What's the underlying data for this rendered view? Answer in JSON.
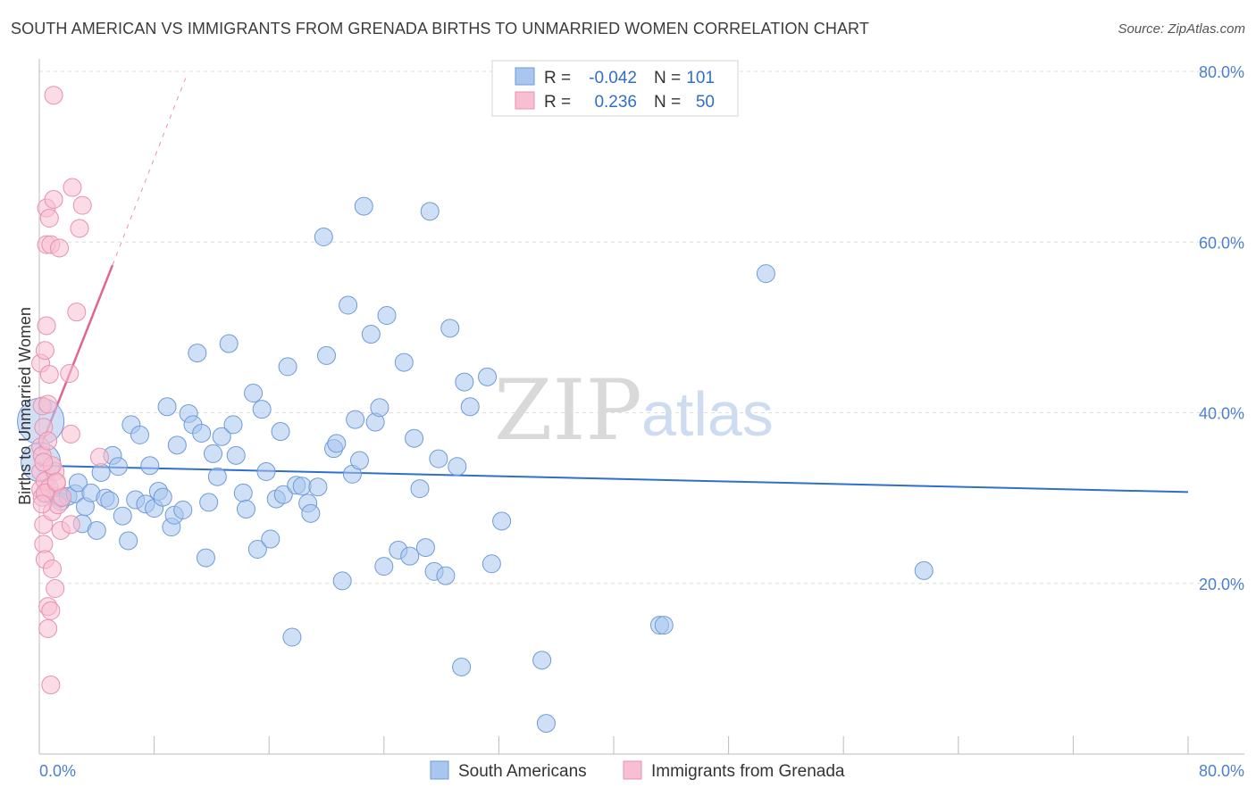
{
  "title": "SOUTH AMERICAN VS IMMIGRANTS FROM GRENADA BIRTHS TO UNMARRIED WOMEN CORRELATION CHART",
  "source": "Source: ZipAtlas.com",
  "watermark": {
    "zip": "ZIP",
    "atlas": "atlas"
  },
  "chart_data": {
    "type": "scatter",
    "ylabel": "Births to Unmarried Women",
    "xlim": [
      0,
      80
    ],
    "ylim": [
      0,
      80
    ],
    "x_tick_labels": {
      "min": "0.0%",
      "max": "80.0%"
    },
    "y_tick_labels": [
      "20.0%",
      "40.0%",
      "60.0%",
      "80.0%"
    ],
    "y_ticks": [
      20,
      40,
      60,
      80
    ],
    "grid": true,
    "legend_stats": [
      {
        "r_label": "R =",
        "r_value": "-0.042",
        "n_label": "N =",
        "n_value": "101"
      },
      {
        "r_label": "R =",
        "r_value": "0.236",
        "n_label": "N =",
        "n_value": "50"
      }
    ],
    "series": [
      {
        "name": "South Americans",
        "color": "#a8c6ee",
        "stroke": "#6e9ad8",
        "trend": {
          "x": [
            0,
            80
          ],
          "y": [
            33.8,
            30.7
          ],
          "color": "#2f6fcc"
        },
        "points": [
          [
            0.1,
            39.0
          ],
          [
            0.1,
            34.2
          ],
          [
            0.4,
            30.5
          ],
          [
            1.0,
            30.2
          ],
          [
            1.5,
            29.6
          ],
          [
            1.5,
            30.0
          ],
          [
            2.0,
            30.2
          ],
          [
            2.5,
            30.5
          ],
          [
            2.7,
            31.8
          ],
          [
            3.0,
            27.0
          ],
          [
            3.2,
            29.0
          ],
          [
            3.6,
            30.6
          ],
          [
            4.0,
            26.2
          ],
          [
            4.3,
            33.0
          ],
          [
            4.6,
            30.0
          ],
          [
            4.9,
            29.7
          ],
          [
            5.1,
            35.0
          ],
          [
            5.5,
            33.7
          ],
          [
            5.8,
            27.9
          ],
          [
            6.2,
            25.0
          ],
          [
            6.4,
            38.6
          ],
          [
            6.7,
            29.8
          ],
          [
            7.0,
            37.4
          ],
          [
            7.4,
            29.3
          ],
          [
            7.7,
            33.8
          ],
          [
            8.0,
            28.8
          ],
          [
            8.3,
            30.8
          ],
          [
            8.6,
            30.1
          ],
          [
            8.9,
            40.7
          ],
          [
            9.2,
            26.6
          ],
          [
            9.4,
            28.0
          ],
          [
            9.6,
            36.2
          ],
          [
            10.0,
            28.6
          ],
          [
            10.4,
            39.9
          ],
          [
            10.7,
            38.6
          ],
          [
            11.0,
            47.0
          ],
          [
            11.3,
            37.6
          ],
          [
            11.6,
            23.0
          ],
          [
            11.8,
            29.5
          ],
          [
            12.1,
            35.2
          ],
          [
            12.4,
            32.5
          ],
          [
            12.7,
            37.2
          ],
          [
            13.2,
            48.1
          ],
          [
            13.5,
            38.6
          ],
          [
            13.7,
            35.0
          ],
          [
            14.2,
            30.6
          ],
          [
            14.4,
            28.7
          ],
          [
            14.9,
            42.3
          ],
          [
            15.2,
            24.0
          ],
          [
            15.5,
            40.4
          ],
          [
            15.8,
            33.1
          ],
          [
            16.1,
            25.2
          ],
          [
            16.5,
            29.9
          ],
          [
            16.8,
            37.8
          ],
          [
            17.0,
            30.4
          ],
          [
            17.3,
            45.4
          ],
          [
            17.6,
            13.7
          ],
          [
            17.9,
            31.5
          ],
          [
            18.3,
            31.4
          ],
          [
            18.7,
            29.4
          ],
          [
            18.9,
            28.2
          ],
          [
            19.4,
            31.3
          ],
          [
            19.8,
            60.6
          ],
          [
            20.0,
            46.7
          ],
          [
            20.5,
            35.8
          ],
          [
            20.7,
            36.4
          ],
          [
            21.1,
            20.3
          ],
          [
            21.5,
            52.6
          ],
          [
            21.8,
            32.8
          ],
          [
            22.0,
            39.2
          ],
          [
            22.3,
            34.4
          ],
          [
            22.6,
            64.2
          ],
          [
            23.1,
            49.2
          ],
          [
            23.4,
            38.9
          ],
          [
            23.7,
            40.6
          ],
          [
            24.0,
            22.0
          ],
          [
            24.2,
            51.4
          ],
          [
            25.0,
            23.9
          ],
          [
            25.4,
            45.9
          ],
          [
            25.8,
            23.2
          ],
          [
            26.1,
            37.0
          ],
          [
            26.5,
            31.1
          ],
          [
            26.9,
            24.2
          ],
          [
            27.2,
            63.6
          ],
          [
            27.5,
            21.4
          ],
          [
            27.8,
            34.6
          ],
          [
            28.3,
            20.9
          ],
          [
            28.6,
            49.9
          ],
          [
            29.1,
            33.7
          ],
          [
            29.4,
            10.2
          ],
          [
            29.6,
            43.6
          ],
          [
            30.0,
            40.7
          ],
          [
            31.2,
            44.2
          ],
          [
            31.5,
            22.3
          ],
          [
            32.2,
            27.3
          ],
          [
            35.0,
            11.0
          ],
          [
            35.3,
            3.6
          ],
          [
            43.2,
            15.1
          ],
          [
            43.5,
            15.1
          ],
          [
            50.6,
            56.3
          ],
          [
            61.6,
            21.5
          ]
        ]
      },
      {
        "name": "Immigrants from Grenada",
        "color": "#f7bfd1",
        "stroke": "#e890ad",
        "trend": {
          "x": [
            0,
            5.1
          ],
          "y": [
            35.6,
            57.3
          ],
          "color": "#e0668f",
          "dash_to": [
            10.3,
            79.7
          ]
        },
        "points": [
          [
            0.1,
            45.8
          ],
          [
            0.1,
            36.0
          ],
          [
            0.1,
            33.1
          ],
          [
            0.1,
            31.0
          ],
          [
            0.2,
            40.8
          ],
          [
            0.2,
            35.0
          ],
          [
            0.2,
            30.1
          ],
          [
            0.3,
            24.6
          ],
          [
            0.3,
            26.9
          ],
          [
            0.4,
            47.3
          ],
          [
            0.4,
            22.8
          ],
          [
            0.4,
            32.0
          ],
          [
            0.5,
            50.2
          ],
          [
            0.5,
            59.7
          ],
          [
            0.5,
            64.0
          ],
          [
            0.6,
            41.0
          ],
          [
            0.6,
            17.3
          ],
          [
            0.6,
            14.7
          ],
          [
            0.7,
            62.8
          ],
          [
            0.7,
            31.2
          ],
          [
            0.7,
            44.5
          ],
          [
            0.8,
            8.1
          ],
          [
            0.8,
            59.7
          ],
          [
            0.8,
            16.8
          ],
          [
            0.9,
            21.7
          ],
          [
            0.9,
            28.4
          ],
          [
            1.0,
            77.2
          ],
          [
            1.0,
            65.0
          ],
          [
            1.1,
            19.4
          ],
          [
            1.1,
            33.1
          ],
          [
            1.2,
            31.7
          ],
          [
            1.3,
            29.2
          ],
          [
            1.4,
            59.3
          ],
          [
            1.5,
            26.2
          ],
          [
            1.6,
            30.1
          ],
          [
            2.1,
            44.6
          ],
          [
            2.2,
            37.5
          ],
          [
            2.2,
            26.9
          ],
          [
            2.3,
            66.4
          ],
          [
            2.6,
            51.8
          ],
          [
            2.8,
            61.6
          ],
          [
            3.0,
            64.3
          ],
          [
            4.2,
            34.8
          ],
          [
            0.3,
            38.3
          ],
          [
            0.4,
            30.6
          ],
          [
            0.2,
            29.3
          ],
          [
            0.9,
            33.8
          ],
          [
            1.2,
            31.9
          ],
          [
            0.6,
            36.7
          ],
          [
            0.3,
            34.2
          ]
        ]
      }
    ]
  },
  "legend": [
    {
      "label": "South Americans",
      "color": "#a8c6ee",
      "stroke": "#6e9ad8"
    },
    {
      "label": "Immigrants from Grenada",
      "color": "#f7bfd1",
      "stroke": "#e890ad"
    }
  ]
}
